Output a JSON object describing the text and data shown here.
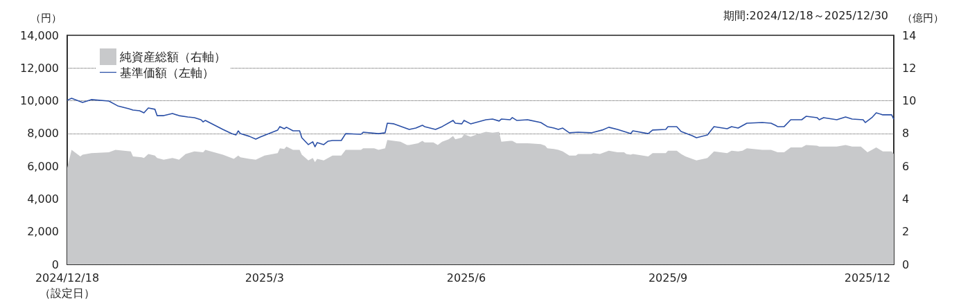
{
  "chart_data": {
    "type": "line",
    "ylabel": "（円）",
    "y2label": "（億円）",
    "annotations": [
      "期間:2024/12/18～2025/12/30"
    ],
    "xlim": [
      "2024-12-18",
      "2025-12-30"
    ],
    "xticks": [
      {
        "value": "2024-12-18",
        "label": "2024/12/18\n（設定日）"
      },
      {
        "value": "2025-03-18",
        "label": "2025/3"
      },
      {
        "value": "2025-06-18",
        "label": "2025/6"
      },
      {
        "value": "2025-09-18",
        "label": "2025/9"
      },
      {
        "value": "2025-12-18",
        "label": "2025/12"
      }
    ],
    "ylim": [
      0,
      14000
    ],
    "yticks": [
      0,
      {
        "value": 2000,
        "label": "2,000"
      },
      {
        "value": 4000,
        "label": "4,000"
      },
      {
        "value": 6000,
        "label": "6,000"
      },
      {
        "value": 8000,
        "label": "8,000"
      },
      {
        "value": 10000,
        "label": "10,000"
      },
      {
        "value": 12000,
        "label": "12,000"
      },
      {
        "value": 14000,
        "label": "14,000"
      }
    ],
    "y2lim": [
      0,
      14
    ],
    "y2ticks": [
      0,
      2,
      4,
      6,
      8,
      10,
      12,
      14
    ],
    "grid": "y",
    "legend": "top left",
    "series": [
      {
        "name": "純資産総額（右軸）",
        "type": "area",
        "axis": "y2",
        "color": "#c8c9cb",
        "x": [
          "2024-12-18",
          "2024-12-20",
          "2024-12-24",
          "2024-12-25",
          "2024-12-29",
          "2025-01-06",
          "2025-01-09",
          "2025-01-16",
          "2025-01-17",
          "2025-01-21",
          "2025-01-22",
          "2025-01-24",
          "2025-01-27",
          "2025-01-28",
          "2025-01-31",
          "2025-02-04",
          "2025-02-07",
          "2025-02-10",
          "2025-02-14",
          "2025-02-18",
          "2025-02-19",
          "2025-02-27",
          "2025-03-04",
          "2025-03-06",
          "2025-03-07",
          "2025-03-11",
          "2025-03-14",
          "2025-03-18",
          "2025-03-24",
          "2025-03-25",
          "2025-03-27",
          "2025-03-28",
          "2025-03-31",
          "2025-04-03",
          "2025-04-04",
          "2025-04-07",
          "2025-04-09",
          "2025-04-10",
          "2025-04-11",
          "2025-04-14",
          "2025-04-16",
          "2025-04-18",
          "2025-04-22",
          "2025-04-24",
          "2025-05-01",
          "2025-05-02",
          "2025-05-07",
          "2025-05-09",
          "2025-05-12",
          "2025-05-13",
          "2025-05-16",
          "2025-05-19",
          "2025-05-22",
          "2025-05-23",
          "2025-05-27",
          "2025-05-29",
          "2025-05-30",
          "2025-06-03",
          "2025-06-05",
          "2025-06-07",
          "2025-06-10",
          "2025-06-12",
          "2025-06-13",
          "2025-06-16",
          "2025-06-17",
          "2025-06-20",
          "2025-06-23",
          "2025-06-27",
          "2025-06-30",
          "2025-07-03",
          "2025-07-04",
          "2025-07-08",
          "2025-07-09",
          "2025-07-11",
          "2025-07-15",
          "2025-07-16",
          "2025-07-22",
          "2025-07-24",
          "2025-07-25",
          "2025-07-28",
          "2025-07-30",
          "2025-08-01",
          "2025-08-04",
          "2025-08-07",
          "2025-08-08",
          "2025-08-14",
          "2025-08-15",
          "2025-08-18",
          "2025-08-19",
          "2025-08-22",
          "2025-08-26",
          "2025-08-29",
          "2025-08-30",
          "2025-09-01",
          "2025-09-02",
          "2025-09-09",
          "2025-09-11",
          "2025-09-17",
          "2025-09-18",
          "2025-09-22",
          "2025-09-24",
          "2025-09-26",
          "2025-09-29",
          "2025-10-01",
          "2025-10-06",
          "2025-10-09",
          "2025-10-15",
          "2025-10-17",
          "2025-10-20",
          "2025-10-22",
          "2025-10-24",
          "2025-10-27",
          "2025-10-31",
          "2025-11-04",
          "2025-11-06",
          "2025-11-07",
          "2025-11-10",
          "2025-11-13",
          "2025-11-18",
          "2025-11-20",
          "2025-11-25",
          "2025-11-26",
          "2025-12-04",
          "2025-12-08",
          "2025-12-11",
          "2025-12-15",
          "2025-12-18",
          "2025-12-22",
          "2025-12-25",
          "2025-12-29",
          "2025-12-30"
        ],
        "values": [
          5.9,
          7.0,
          6.6,
          6.7,
          6.8,
          6.85,
          7.0,
          6.9,
          6.6,
          6.55,
          6.5,
          6.75,
          6.65,
          6.5,
          6.4,
          6.5,
          6.4,
          6.75,
          6.9,
          6.85,
          7.0,
          6.7,
          6.45,
          6.65,
          6.55,
          6.45,
          6.4,
          6.65,
          6.8,
          7.1,
          7.05,
          7.2,
          7.0,
          7.0,
          6.7,
          6.35,
          6.5,
          6.25,
          6.45,
          6.35,
          6.5,
          6.65,
          6.65,
          7.0,
          7.0,
          7.1,
          7.1,
          7.0,
          7.1,
          7.6,
          7.55,
          7.5,
          7.3,
          7.3,
          7.4,
          7.55,
          7.45,
          7.45,
          7.3,
          7.5,
          7.65,
          7.85,
          7.65,
          7.75,
          7.95,
          7.8,
          7.95,
          8.1,
          8.05,
          8.1,
          7.5,
          7.55,
          7.55,
          7.4,
          7.4,
          7.4,
          7.35,
          7.25,
          7.1,
          7.05,
          7.0,
          6.9,
          6.65,
          6.65,
          6.75,
          6.75,
          6.8,
          6.75,
          6.8,
          6.95,
          6.85,
          6.85,
          6.75,
          6.7,
          6.75,
          6.6,
          6.8,
          6.8,
          6.95,
          6.95,
          6.75,
          6.6,
          6.45,
          6.35,
          6.5,
          6.9,
          6.8,
          6.95,
          6.9,
          6.95,
          7.1,
          7.05,
          7.0,
          7.0,
          6.9,
          6.85,
          6.85,
          7.15,
          7.15,
          7.3,
          7.25,
          7.2,
          7.2,
          7.3,
          7.2,
          7.2,
          6.85,
          7.15,
          6.9,
          6.9,
          6.75
        ]
      },
      {
        "name": "基準価額（左軸）",
        "type": "line",
        "color": "#2a4fa6",
        "x": [
          "2024-12-18",
          "2024-12-20",
          "2024-12-25",
          "2024-12-29",
          "2025-01-06",
          "2025-01-10",
          "2025-01-15",
          "2025-01-17",
          "2025-01-20",
          "2025-01-22",
          "2025-01-24",
          "2025-01-27",
          "2025-01-28",
          "2025-01-31",
          "2025-02-04",
          "2025-02-07",
          "2025-02-11",
          "2025-02-14",
          "2025-02-17",
          "2025-02-18",
          "2025-02-19",
          "2025-02-27",
          "2025-03-03",
          "2025-03-05",
          "2025-03-06",
          "2025-03-07",
          "2025-03-11",
          "2025-03-14",
          "2025-03-16",
          "2025-03-20",
          "2025-03-24",
          "2025-03-25",
          "2025-03-27",
          "2025-03-28",
          "2025-03-31",
          "2025-04-03",
          "2025-04-04",
          "2025-04-07",
          "2025-04-09",
          "2025-04-10",
          "2025-04-11",
          "2025-04-14",
          "2025-04-16",
          "2025-04-18",
          "2025-04-22",
          "2025-04-24",
          "2025-05-01",
          "2025-05-02",
          "2025-05-09",
          "2025-05-12",
          "2025-05-13",
          "2025-05-16",
          "2025-05-23",
          "2025-05-26",
          "2025-05-29",
          "2025-05-30",
          "2025-06-04",
          "2025-06-07",
          "2025-06-12",
          "2025-06-13",
          "2025-06-16",
          "2025-06-17",
          "2025-06-20",
          "2025-06-27",
          "2025-06-30",
          "2025-07-03",
          "2025-07-04",
          "2025-07-08",
          "2025-07-09",
          "2025-07-11",
          "2025-07-16",
          "2025-07-22",
          "2025-07-25",
          "2025-07-28",
          "2025-07-30",
          "2025-08-01",
          "2025-08-04",
          "2025-08-08",
          "2025-08-14",
          "2025-08-19",
          "2025-08-22",
          "2025-08-26",
          "2025-09-01",
          "2025-09-02",
          "2025-09-09",
          "2025-09-11",
          "2025-09-17",
          "2025-09-18",
          "2025-09-22",
          "2025-09-24",
          "2025-09-29",
          "2025-10-01",
          "2025-10-06",
          "2025-10-09",
          "2025-10-15",
          "2025-10-17",
          "2025-10-20",
          "2025-10-24",
          "2025-10-31",
          "2025-11-04",
          "2025-11-06",
          "2025-11-07",
          "2025-11-10",
          "2025-11-13",
          "2025-11-18",
          "2025-11-20",
          "2025-11-25",
          "2025-11-26",
          "2025-11-28",
          "2025-12-04",
          "2025-12-08",
          "2025-12-11",
          "2025-12-16",
          "2025-12-17",
          "2025-12-20",
          "2025-12-22",
          "2025-12-25",
          "2025-12-29",
          "2025-12-30"
        ],
        "values": [
          10030,
          10150,
          9900,
          10070,
          9980,
          9690,
          9520,
          9430,
          9390,
          9260,
          9560,
          9480,
          9090,
          9090,
          9220,
          9090,
          9010,
          8970,
          8840,
          8710,
          8800,
          8250,
          7990,
          7910,
          8160,
          7990,
          7830,
          7660,
          7780,
          7990,
          8210,
          8420,
          8290,
          8380,
          8160,
          8160,
          7740,
          7320,
          7490,
          7190,
          7440,
          7320,
          7530,
          7570,
          7570,
          7990,
          7950,
          8080,
          7990,
          8040,
          8630,
          8590,
          8250,
          8330,
          8500,
          8420,
          8250,
          8420,
          8800,
          8630,
          8590,
          8800,
          8590,
          8840,
          8880,
          8760,
          8880,
          8840,
          8970,
          8800,
          8840,
          8670,
          8420,
          8330,
          8250,
          8330,
          8040,
          8080,
          8040,
          8210,
          8380,
          8250,
          7990,
          8160,
          7990,
          8210,
          8250,
          8420,
          8420,
          8120,
          7870,
          7740,
          7910,
          8420,
          8290,
          8420,
          8330,
          8630,
          8670,
          8630,
          8500,
          8420,
          8420,
          8840,
          8840,
          9050,
          8970,
          8840,
          8970,
          8840,
          9010,
          8880,
          8840,
          8670,
          8970,
          9260,
          9140,
          9140,
          8880
        ]
      }
    ]
  }
}
